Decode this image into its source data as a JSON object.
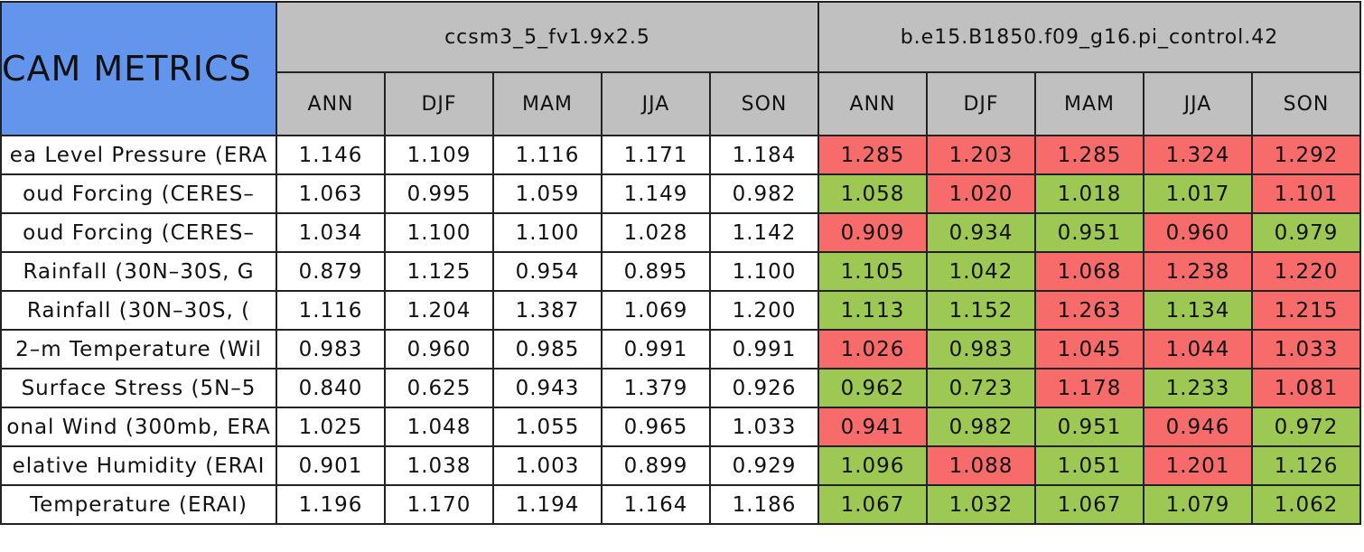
{
  "table": {
    "title": "CAM METRICS",
    "cases": [
      "ccsm3_5_fv1.9x2.5",
      "b.e15.B1850.f09_g16.pi_control.42"
    ],
    "seasons": [
      "ANN",
      "DJF",
      "MAM",
      "JJA",
      "SON"
    ],
    "rows": [
      {
        "label": "ea Level Pressure (ERA",
        "values": [
          "1.146",
          "1.109",
          "1.116",
          "1.171",
          "1.184",
          "1.285",
          "1.203",
          "1.285",
          "1.324",
          "1.292"
        ],
        "colors": [
          "#ffffff",
          "#ffffff",
          "#ffffff",
          "#ffffff",
          "#ffffff",
          "#f86b6b",
          "#f86b6b",
          "#f86b6b",
          "#f86b6b",
          "#f86b6b"
        ]
      },
      {
        "label": "oud Forcing (CERES–",
        "values": [
          "1.063",
          "0.995",
          "1.059",
          "1.149",
          "0.982",
          "1.058",
          "1.020",
          "1.018",
          "1.017",
          "1.101"
        ],
        "colors": [
          "#ffffff",
          "#ffffff",
          "#ffffff",
          "#ffffff",
          "#ffffff",
          "#9dc853",
          "#f86b6b",
          "#9dc853",
          "#9dc853",
          "#f86b6b"
        ]
      },
      {
        "label": "oud Forcing (CERES–",
        "values": [
          "1.034",
          "1.100",
          "1.100",
          "1.028",
          "1.142",
          "0.909",
          "0.934",
          "0.951",
          "0.960",
          "0.979"
        ],
        "colors": [
          "#ffffff",
          "#ffffff",
          "#ffffff",
          "#ffffff",
          "#ffffff",
          "#f86b6b",
          "#9dc853",
          "#9dc853",
          "#f86b6b",
          "#9dc853"
        ]
      },
      {
        "label": "Rainfall (30N–30S, G",
        "values": [
          "0.879",
          "1.125",
          "0.954",
          "0.895",
          "1.100",
          "1.105",
          "1.042",
          "1.068",
          "1.238",
          "1.220"
        ],
        "colors": [
          "#ffffff",
          "#ffffff",
          "#ffffff",
          "#ffffff",
          "#ffffff",
          "#9dc853",
          "#9dc853",
          "#f86b6b",
          "#f86b6b",
          "#f86b6b"
        ]
      },
      {
        "label": "Rainfall (30N–30S, (",
        "values": [
          "1.116",
          "1.204",
          "1.387",
          "1.069",
          "1.200",
          "1.113",
          "1.152",
          "1.263",
          "1.134",
          "1.215"
        ],
        "colors": [
          "#ffffff",
          "#ffffff",
          "#ffffff",
          "#ffffff",
          "#ffffff",
          "#9dc853",
          "#9dc853",
          "#f86b6b",
          "#9dc853",
          "#f86b6b"
        ]
      },
      {
        "label": "2–m Temperature (Wil",
        "values": [
          "0.983",
          "0.960",
          "0.985",
          "0.991",
          "0.991",
          "1.026",
          "0.983",
          "1.045",
          "1.044",
          "1.033"
        ],
        "colors": [
          "#ffffff",
          "#ffffff",
          "#ffffff",
          "#ffffff",
          "#ffffff",
          "#f86b6b",
          "#9dc853",
          "#f86b6b",
          "#f86b6b",
          "#f86b6b"
        ]
      },
      {
        "label": "Surface Stress (5N–5",
        "values": [
          "0.840",
          "0.625",
          "0.943",
          "1.379",
          "0.926",
          "0.962",
          "0.723",
          "1.178",
          "1.233",
          "1.081"
        ],
        "colors": [
          "#ffffff",
          "#ffffff",
          "#ffffff",
          "#ffffff",
          "#ffffff",
          "#9dc853",
          "#9dc853",
          "#f86b6b",
          "#9dc853",
          "#f86b6b"
        ]
      },
      {
        "label": "onal Wind (300mb, ERA",
        "values": [
          "1.025",
          "1.048",
          "1.055",
          "0.965",
          "1.033",
          "0.941",
          "0.982",
          "0.951",
          "0.946",
          "0.972"
        ],
        "colors": [
          "#ffffff",
          "#ffffff",
          "#ffffff",
          "#ffffff",
          "#ffffff",
          "#f86b6b",
          "#9dc853",
          "#9dc853",
          "#f86b6b",
          "#9dc853"
        ]
      },
      {
        "label": "elative Humidity (ERAI",
        "values": [
          "0.901",
          "1.038",
          "1.003",
          "0.899",
          "0.929",
          "1.096",
          "1.088",
          "1.051",
          "1.201",
          "1.126"
        ],
        "colors": [
          "#ffffff",
          "#ffffff",
          "#ffffff",
          "#ffffff",
          "#ffffff",
          "#9dc853",
          "#f86b6b",
          "#9dc853",
          "#f86b6b",
          "#9dc853"
        ]
      },
      {
        "label": "Temperature (ERAI)",
        "values": [
          "1.196",
          "1.170",
          "1.194",
          "1.164",
          "1.186",
          "1.067",
          "1.032",
          "1.067",
          "1.079",
          "1.062"
        ],
        "colors": [
          "#ffffff",
          "#ffffff",
          "#ffffff",
          "#ffffff",
          "#ffffff",
          "#9dc853",
          "#9dc853",
          "#9dc853",
          "#9dc853",
          "#9dc853"
        ]
      }
    ],
    "header_color": "#c0c0c0",
    "title_color": "#6495ed"
  }
}
